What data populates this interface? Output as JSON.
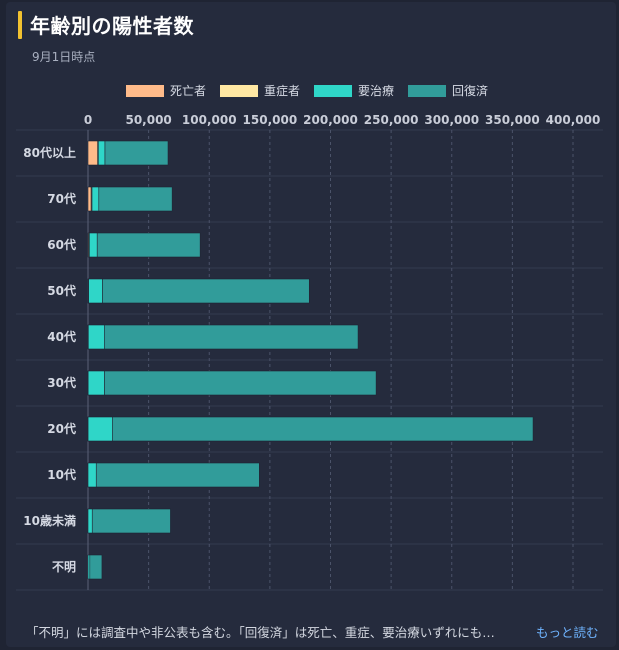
{
  "header": {
    "title": "年齢別の陽性者数",
    "subtitle": "9月1日時点"
  },
  "footer": {
    "note": "「不明」には調査中や非公表も含む。「回復済」は死亡、重症、要治療いずれにも…",
    "more_label": "もっと読む"
  },
  "colors": {
    "death": "#ffbb8a",
    "severe": "#ffe8a3",
    "treatment": "#2fd6c8",
    "recovered": "#319c9a"
  },
  "chart_data": {
    "type": "bar",
    "orientation": "horizontal",
    "stacked": true,
    "categories": [
      "80代以上",
      "70代",
      "60代",
      "50代",
      "40代",
      "30代",
      "20代",
      "10代",
      "10歳未満",
      "不明"
    ],
    "series": [
      {
        "name": "死亡者",
        "color": "#ffbb8a",
        "values": [
          7800,
          2600,
          600,
          150,
          40,
          20,
          10,
          0,
          0,
          0
        ]
      },
      {
        "name": "重症者",
        "color": "#ffe8a3",
        "values": [
          700,
          700,
          500,
          350,
          200,
          100,
          50,
          10,
          5,
          0
        ]
      },
      {
        "name": "要治療",
        "color": "#2fd6c8",
        "values": [
          5500,
          5600,
          6500,
          11500,
          13500,
          13500,
          20000,
          6800,
          3500,
          1500
        ]
      },
      {
        "name": "回復済",
        "color": "#319c9a",
        "values": [
          52000,
          60500,
          84900,
          170500,
          209000,
          224000,
          347000,
          134500,
          64500,
          10000
        ]
      }
    ],
    "xlim": [
      0,
      400000
    ],
    "xticks": [
      "0",
      "50,000",
      "100,000",
      "150,000",
      "200,000",
      "250,000",
      "300,000",
      "350,000",
      "400,000"
    ],
    "legend_position": "top",
    "grid": true
  }
}
